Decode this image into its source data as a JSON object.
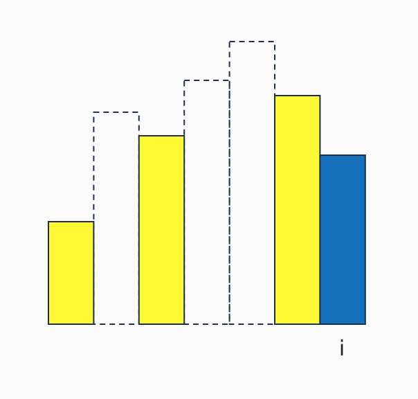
{
  "diagram": {
    "bars": [
      {
        "kind": "solid",
        "height": 148,
        "color": "#fdf935"
      },
      {
        "kind": "dashed",
        "height": 306
      },
      {
        "kind": "solid",
        "height": 272,
        "color": "#fdf935"
      },
      {
        "kind": "dashed",
        "height": 352
      },
      {
        "kind": "dashed",
        "height": 408
      },
      {
        "kind": "solid",
        "height": 330,
        "color": "#fdf935"
      },
      {
        "kind": "solid",
        "height": 244,
        "color": "#1571bb"
      }
    ],
    "pointer_label": "i",
    "pointer_bar_index": 6
  }
}
